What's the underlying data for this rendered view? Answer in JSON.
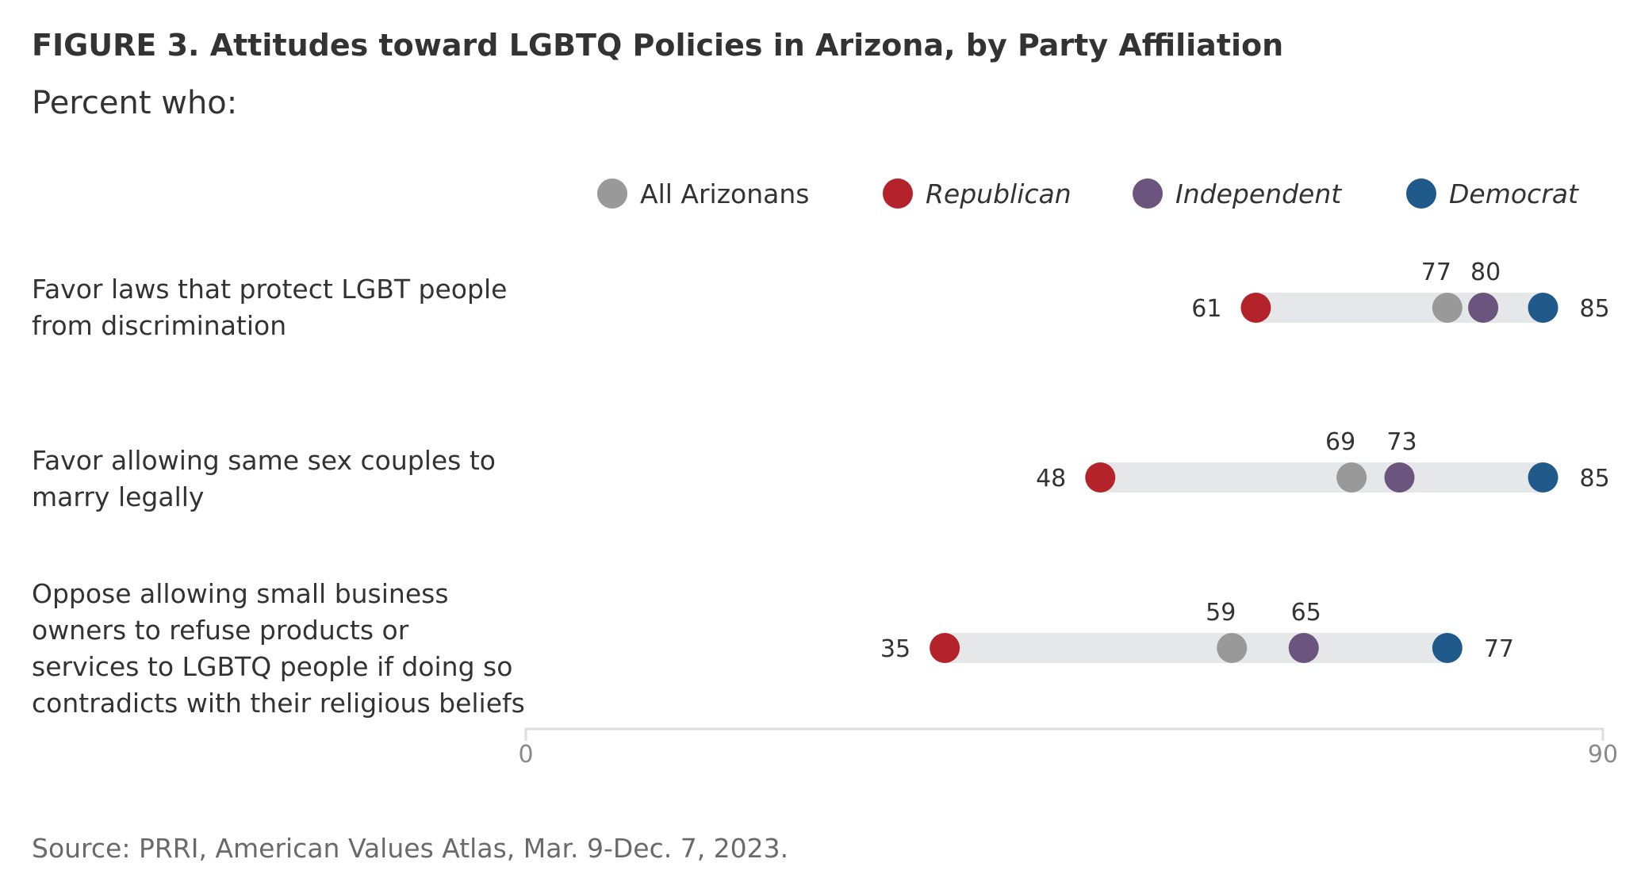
{
  "chart_data": {
    "type": "dot",
    "title": "FIGURE 3. Attitudes toward LGBTQ Policies in Arizona, by Party Affiliation",
    "subtitle": "Percent who:",
    "xlim": [
      0,
      90
    ],
    "x_ticks": [
      "0",
      "90"
    ],
    "legend_position": "top-right",
    "series": [
      {
        "name": "All Arizonans",
        "italic": false,
        "color": "#999999"
      },
      {
        "name": "Republican",
        "italic": true,
        "color": "#B5232A"
      },
      {
        "name": "Independent",
        "italic": true,
        "color": "#6B547E"
      },
      {
        "name": "Democrat",
        "italic": true,
        "color": "#1F5A8A"
      }
    ],
    "rows": [
      {
        "label_lines": [
          "Favor laws that protect LGBT people",
          "from discrimination"
        ],
        "values": {
          "All Arizonans": 77,
          "Republican": 61,
          "Independent": 80,
          "Democrat": 85
        }
      },
      {
        "label_lines": [
          "Favor allowing same sex couples to",
          "marry legally"
        ],
        "values": {
          "All Arizonans": 69,
          "Republican": 48,
          "Independent": 73,
          "Democrat": 85
        }
      },
      {
        "label_lines": [
          "Oppose allowing small business",
          "owners to refuse products or",
          "services to LGBTQ people if doing so",
          "contradicts with their religious beliefs"
        ],
        "values": {
          "All Arizonans": 59,
          "Republican": 35,
          "Independent": 65,
          "Democrat": 77
        }
      }
    ],
    "source": "Source: PRRI, American Values Atlas, Mar. 9-Dec. 7, 2023.",
    "colors": {
      "range_bar": "#E6E7E8",
      "axis": "#DDDDDD"
    }
  }
}
